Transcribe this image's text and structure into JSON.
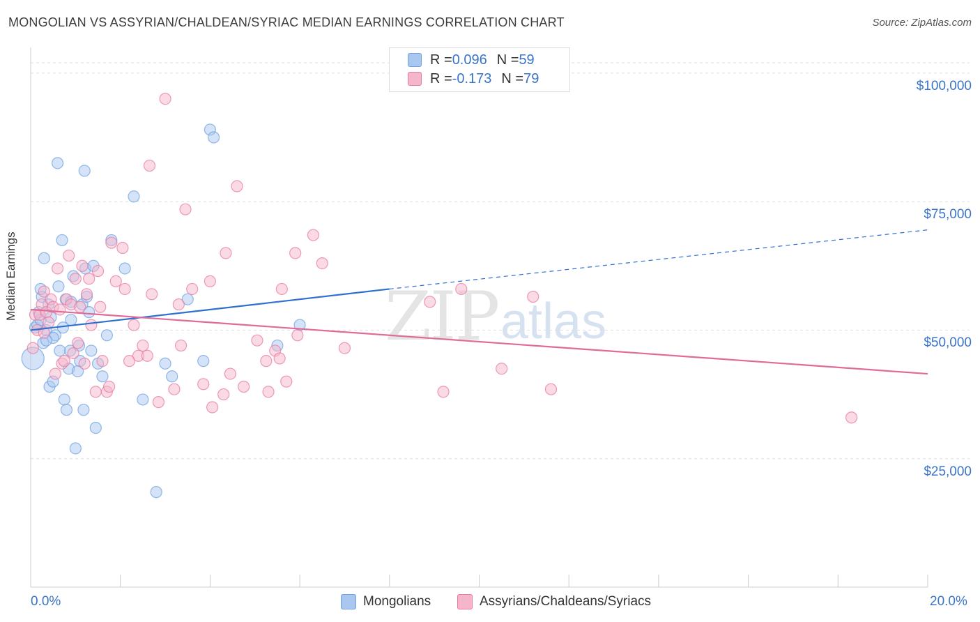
{
  "header": {
    "title": "MONGOLIAN VS ASSYRIAN/CHALDEAN/SYRIAC MEDIAN EARNINGS CORRELATION CHART",
    "source": "Source: ZipAtlas.com"
  },
  "legend_top": {
    "rows": [
      {
        "r_label": "R = ",
        "r_value": "0.096",
        "n_label": "N = ",
        "n_value": "59",
        "color": "#aac8ef"
      },
      {
        "r_label": "R = ",
        "r_value": "-0.173",
        "n_label": "N = ",
        "n_value": "79",
        "color": "#f5b6c9"
      }
    ]
  },
  "watermark": {
    "zip": "ZIP",
    "atlas": "atlas"
  },
  "chart_data": {
    "type": "scatter",
    "title": "MONGOLIAN VS ASSYRIAN/CHALDEAN/SYRIAC MEDIAN EARNINGS CORRELATION CHART",
    "xlabel": "",
    "ylabel": "Median Earnings",
    "xlim": [
      0,
      20
    ],
    "ylim": [
      0,
      105000
    ],
    "x_tick_labels": [
      "0.0%",
      "20.0%"
    ],
    "y_ticks": [
      25000,
      50000,
      75000,
      100000
    ],
    "y_tick_labels": [
      "$25,000",
      "$50,000",
      "$75,000",
      "$100,000"
    ],
    "grid": true,
    "legend_position": "bottom",
    "series": [
      {
        "name": "Mongolians",
        "color": "#6fa1e0",
        "fill": "#aac8ef",
        "trend": {
          "x": [
            0,
            8
          ],
          "y": [
            50000,
            58000
          ],
          "dashed_to": [
            20,
            69500
          ]
        },
        "points": [
          [
            0.05,
            44500
          ],
          [
            0.1,
            50500
          ],
          [
            0.15,
            51000
          ],
          [
            0.18,
            53500
          ],
          [
            0.22,
            52000
          ],
          [
            0.25,
            56500
          ],
          [
            0.28,
            47500
          ],
          [
            0.3,
            64000
          ],
          [
            0.35,
            50000
          ],
          [
            0.4,
            55000
          ],
          [
            0.42,
            39000
          ],
          [
            0.45,
            52500
          ],
          [
            0.5,
            40000
          ],
          [
            0.55,
            49000
          ],
          [
            0.6,
            82500
          ],
          [
            0.62,
            58500
          ],
          [
            0.65,
            46000
          ],
          [
            0.7,
            67500
          ],
          [
            0.72,
            50500
          ],
          [
            0.75,
            36500
          ],
          [
            0.78,
            56000
          ],
          [
            0.8,
            34500
          ],
          [
            0.85,
            42500
          ],
          [
            0.88,
            46000
          ],
          [
            0.9,
            55500
          ],
          [
            0.95,
            60500
          ],
          [
            1.0,
            27000
          ],
          [
            1.05,
            42000
          ],
          [
            1.08,
            47000
          ],
          [
            1.1,
            44000
          ],
          [
            1.15,
            55000
          ],
          [
            1.18,
            34500
          ],
          [
            1.2,
            81000
          ],
          [
            1.22,
            62000
          ],
          [
            1.25,
            56500
          ],
          [
            1.3,
            53500
          ],
          [
            1.35,
            46000
          ],
          [
            1.4,
            62500
          ],
          [
            1.45,
            31000
          ],
          [
            1.5,
            43500
          ],
          [
            1.6,
            41000
          ],
          [
            1.7,
            49000
          ],
          [
            1.8,
            67500
          ],
          [
            2.1,
            62000
          ],
          [
            2.3,
            76000
          ],
          [
            2.5,
            36500
          ],
          [
            2.8,
            18500
          ],
          [
            3.0,
            43500
          ],
          [
            3.15,
            41000
          ],
          [
            3.5,
            56000
          ],
          [
            3.85,
            44000
          ],
          [
            4.0,
            89000
          ],
          [
            4.08,
            87500
          ],
          [
            5.5,
            47000
          ],
          [
            6.0,
            51000
          ],
          [
            0.5,
            48500
          ],
          [
            0.35,
            48000
          ],
          [
            0.22,
            58000
          ],
          [
            0.9,
            52000
          ]
        ]
      },
      {
        "name": "Assyrians/Chaldeans/Syriacs",
        "color": "#e879a3",
        "fill": "#f5b6c9",
        "trend": {
          "x": [
            0,
            20
          ],
          "y": [
            54000,
            41500
          ]
        },
        "points": [
          [
            0.05,
            46500
          ],
          [
            0.1,
            53000
          ],
          [
            0.15,
            50000
          ],
          [
            0.2,
            53000
          ],
          [
            0.25,
            55000
          ],
          [
            0.3,
            57500
          ],
          [
            0.35,
            53500
          ],
          [
            0.4,
            51500
          ],
          [
            0.45,
            56000
          ],
          [
            0.5,
            54500
          ],
          [
            0.6,
            62000
          ],
          [
            0.7,
            43500
          ],
          [
            0.75,
            44000
          ],
          [
            0.8,
            56000
          ],
          [
            0.85,
            64500
          ],
          [
            0.9,
            55000
          ],
          [
            1.0,
            60000
          ],
          [
            1.05,
            47500
          ],
          [
            1.1,
            54500
          ],
          [
            1.2,
            43500
          ],
          [
            1.25,
            57000
          ],
          [
            1.3,
            60000
          ],
          [
            1.35,
            51000
          ],
          [
            1.45,
            38000
          ],
          [
            1.5,
            61500
          ],
          [
            1.55,
            54500
          ],
          [
            1.6,
            44000
          ],
          [
            1.7,
            38000
          ],
          [
            1.75,
            39000
          ],
          [
            1.8,
            67000
          ],
          [
            1.9,
            59500
          ],
          [
            2.05,
            66000
          ],
          [
            2.1,
            58000
          ],
          [
            2.2,
            44000
          ],
          [
            2.3,
            51000
          ],
          [
            2.4,
            45000
          ],
          [
            2.5,
            47000
          ],
          [
            2.6,
            45000
          ],
          [
            2.65,
            82000
          ],
          [
            2.7,
            57000
          ],
          [
            2.85,
            36000
          ],
          [
            3.0,
            95000
          ],
          [
            3.2,
            38500
          ],
          [
            3.3,
            55000
          ],
          [
            3.35,
            47000
          ],
          [
            3.45,
            73500
          ],
          [
            3.6,
            58000
          ],
          [
            3.85,
            39500
          ],
          [
            4.0,
            59500
          ],
          [
            4.05,
            35000
          ],
          [
            4.3,
            37500
          ],
          [
            4.35,
            65000
          ],
          [
            4.45,
            41500
          ],
          [
            4.6,
            78000
          ],
          [
            4.75,
            39000
          ],
          [
            5.05,
            48000
          ],
          [
            5.25,
            44000
          ],
          [
            5.3,
            38000
          ],
          [
            5.45,
            46000
          ],
          [
            5.55,
            44500
          ],
          [
            5.6,
            58000
          ],
          [
            5.7,
            40000
          ],
          [
            5.9,
            65000
          ],
          [
            5.95,
            49000
          ],
          [
            6.3,
            68500
          ],
          [
            6.5,
            63000
          ],
          [
            7.0,
            46500
          ],
          [
            8.9,
            55500
          ],
          [
            9.2,
            38000
          ],
          [
            9.6,
            58000
          ],
          [
            10.5,
            42500
          ],
          [
            11.2,
            56500
          ],
          [
            11.6,
            38500
          ],
          [
            18.3,
            33000
          ],
          [
            0.55,
            41500
          ],
          [
            1.15,
            62500
          ],
          [
            0.65,
            54000
          ],
          [
            0.3,
            49500
          ],
          [
            0.95,
            45500
          ]
        ]
      }
    ]
  }
}
